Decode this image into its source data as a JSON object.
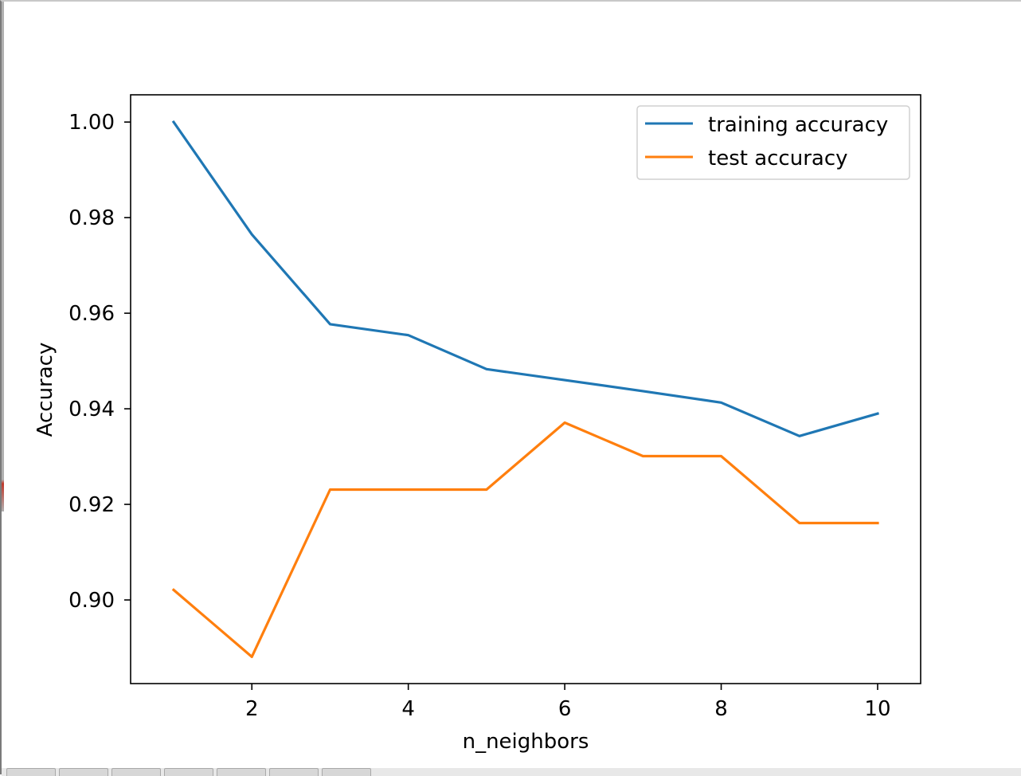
{
  "chart_data": {
    "type": "line",
    "title": "",
    "xlabel": "n_neighbors",
    "ylabel": "Accuracy",
    "x": [
      1,
      2,
      3,
      4,
      5,
      6,
      7,
      8,
      9,
      10
    ],
    "xlim": [
      0.45,
      10.55
    ],
    "ylim": [
      0.8825,
      1.0057
    ],
    "xticks": [
      2,
      4,
      6,
      8,
      10
    ],
    "yticks": [
      0.9,
      0.92,
      0.94,
      0.96,
      0.98,
      1.0
    ],
    "xtick_labels": [
      "2",
      "4",
      "6",
      "8",
      "10"
    ],
    "ytick_labels": [
      "0.90",
      "0.92",
      "0.94",
      "0.96",
      "0.98",
      "1.00"
    ],
    "grid": false,
    "legend_position": "upper right",
    "series": [
      {
        "name": "training accuracy",
        "color": "#1f77b4",
        "values": [
          1.0,
          0.9765,
          0.9577,
          0.9554,
          0.9483,
          0.946,
          0.9437,
          0.9413,
          0.9343,
          0.939
        ]
      },
      {
        "name": "test accuracy",
        "color": "#ff7f0e",
        "values": [
          0.9021,
          0.8881,
          0.9231,
          0.9231,
          0.9231,
          0.9371,
          0.9301,
          0.9301,
          0.9161,
          0.9161
        ]
      }
    ]
  }
}
